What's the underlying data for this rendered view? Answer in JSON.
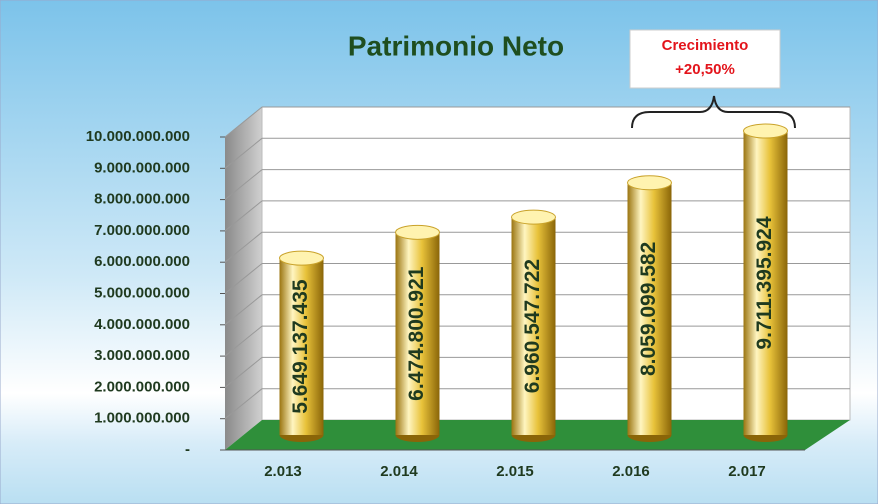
{
  "chart_data": {
    "type": "bar",
    "title": "Patrimonio Neto",
    "annotation": [
      "Crecimiento",
      "+20,50%"
    ],
    "categories": [
      "2.013",
      "2.014",
      "2.015",
      "2.016",
      "2.017"
    ],
    "values": [
      5649137435,
      6474800921,
      6960547722,
      8059099582,
      9711395924
    ],
    "value_labels": [
      "5.649.137.435",
      "6.474.800.921",
      "6.960.547.722",
      "8.059.099.582",
      "9.711.395.924"
    ],
    "color": "#e8c23a",
    "ylim": [
      0,
      10000000000
    ],
    "yticks": [
      {
        "value": 0,
        "label": "-"
      },
      {
        "value": 1000000000,
        "label": "1.000.000.000"
      },
      {
        "value": 2000000000,
        "label": "2.000.000.000"
      },
      {
        "value": 3000000000,
        "label": "3.000.000.000"
      },
      {
        "value": 4000000000,
        "label": "4.000.000.000"
      },
      {
        "value": 5000000000,
        "label": "5.000.000.000"
      },
      {
        "value": 6000000000,
        "label": "6.000.000.000"
      },
      {
        "value": 7000000000,
        "label": "7.000.000.000"
      },
      {
        "value": 8000000000,
        "label": "8.000.000.000"
      },
      {
        "value": 9000000000,
        "label": "9.000.000.000"
      },
      {
        "value": 10000000000,
        "label": "10.000.000.000"
      }
    ],
    "grid": true
  }
}
